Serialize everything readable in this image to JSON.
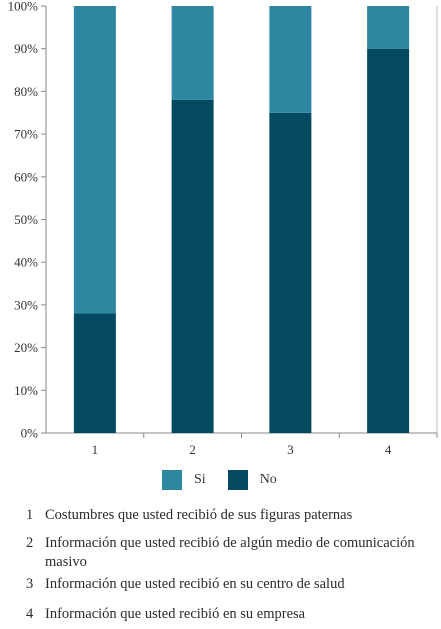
{
  "chart_data": {
    "type": "bar",
    "stacked": true,
    "percent": true,
    "categories": [
      "1",
      "2",
      "3",
      "4"
    ],
    "series": [
      {
        "name": "No",
        "values": [
          28,
          78,
          75,
          90
        ],
        "color": "#034A61"
      },
      {
        "name": "Si",
        "values": [
          72,
          22,
          25,
          10
        ],
        "color": "#2E87A1"
      }
    ],
    "ylim": [
      0,
      100
    ],
    "yticks": [
      "0%",
      "10%",
      "20%",
      "30%",
      "40%",
      "50%",
      "60%",
      "70%",
      "80%",
      "90%",
      "100%"
    ],
    "legend_position": "bottom",
    "legend": [
      {
        "label": "Si",
        "color": "#2E87A1"
      },
      {
        "label": "No",
        "color": "#034A61"
      }
    ]
  },
  "notes": [
    {
      "num": "1",
      "text": "Costumbres que usted recibió de sus figuras paternas"
    },
    {
      "num": "2",
      "text": "Información que usted recibió de algún medio de comunicación masivo"
    },
    {
      "num": "3",
      "text": "Información que usted recibió en su centro de salud"
    },
    {
      "num": "4",
      "text": "Información que usted recibió en su empresa"
    }
  ]
}
